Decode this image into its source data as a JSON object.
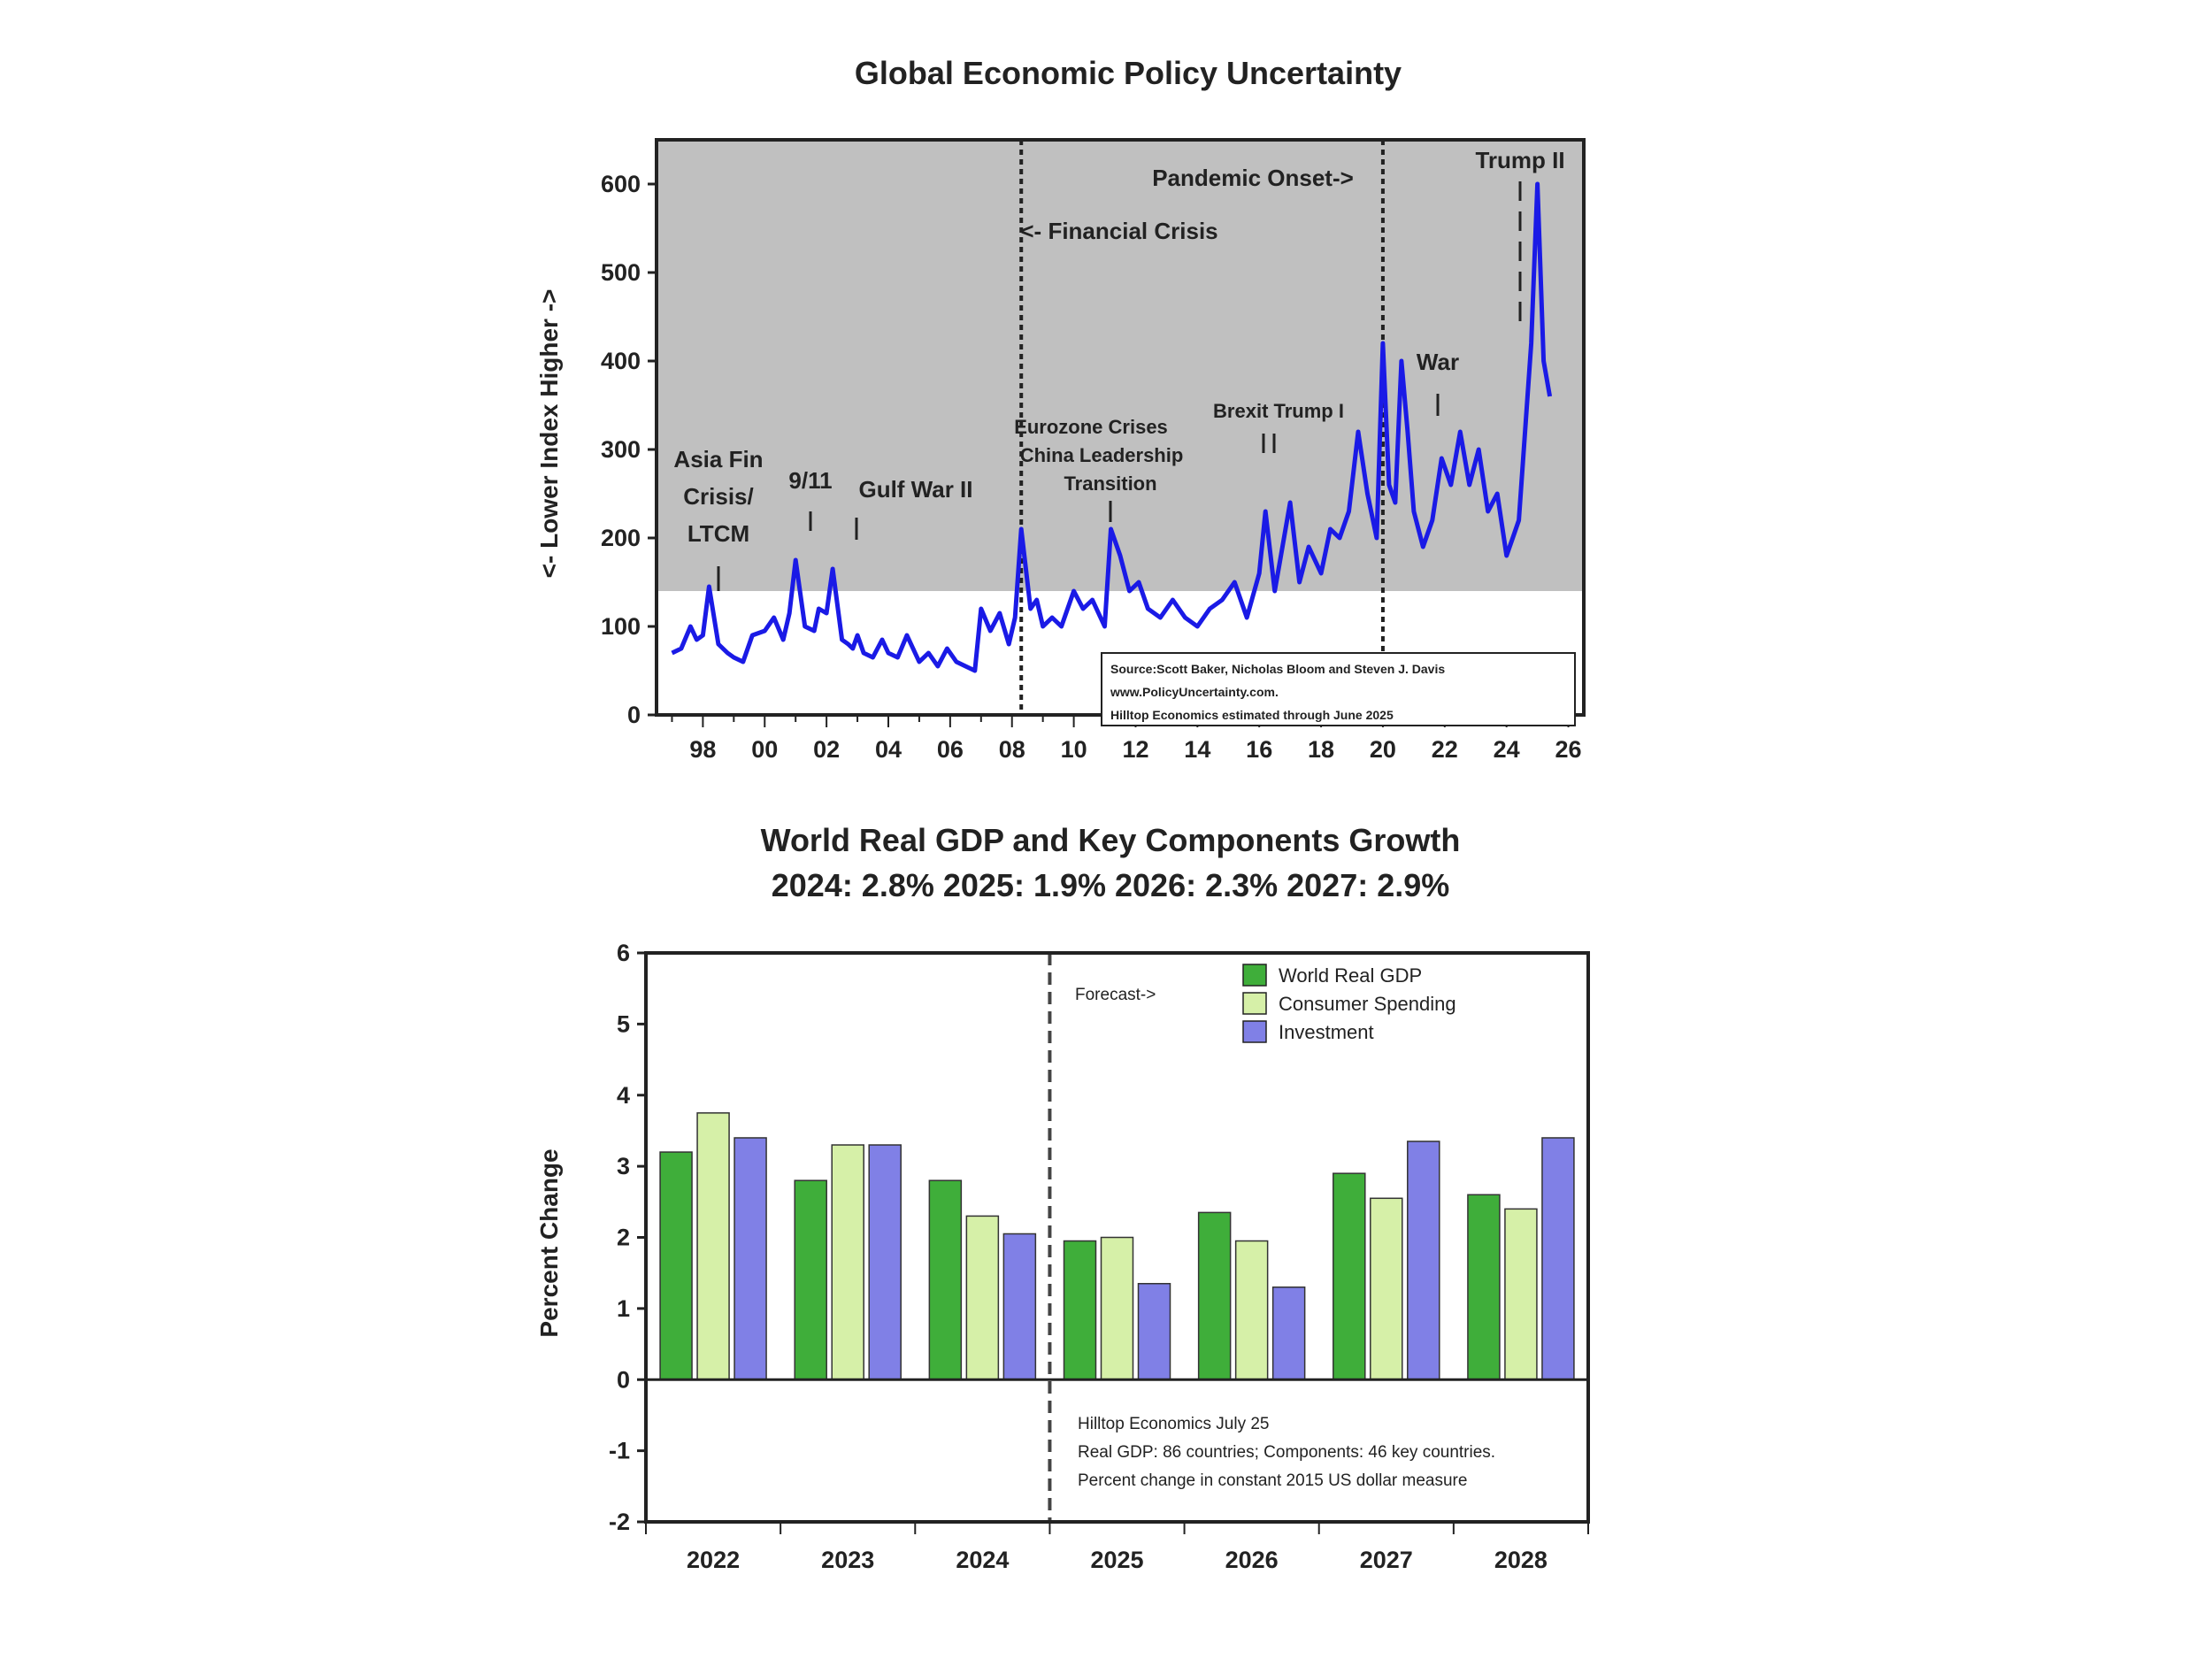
{
  "chart_data": [
    {
      "type": "line",
      "title": "Global Economic Policy Uncertainty",
      "ylabel": "<- Lower  Index  Higher ->",
      "xlabel": "",
      "ylim": [
        0,
        650
      ],
      "yticks": [
        "0",
        "100",
        "200",
        "300",
        "400",
        "500",
        "600"
      ],
      "xticks": [
        "98",
        "00",
        "02",
        "04",
        "06",
        "08",
        "10",
        "12",
        "14",
        "16",
        "18",
        "20",
        "22",
        "24",
        "26"
      ],
      "shading": {
        "label": "",
        "above_value": 140,
        "color": "#c0c0c0"
      },
      "series": [
        {
          "name": "",
          "color": "#1a1ae6",
          "x": [
            1997.0,
            1997.3,
            1997.6,
            1997.8,
            1998.0,
            1998.2,
            1998.5,
            1998.8,
            1999.0,
            1999.3,
            1999.6,
            2000.0,
            2000.3,
            2000.6,
            2000.8,
            2001.0,
            2001.3,
            2001.6,
            2001.75,
            2002.0,
            2002.2,
            2002.5,
            2002.7,
            2002.85,
            2003.0,
            2003.2,
            2003.5,
            2003.8,
            2004.0,
            2004.3,
            2004.6,
            2005.0,
            2005.3,
            2005.6,
            2005.9,
            2006.2,
            2006.5,
            2006.8,
            2007.0,
            2007.3,
            2007.6,
            2007.9,
            2008.1,
            2008.3,
            2008.5,
            2008.6,
            2008.8,
            2009.0,
            2009.3,
            2009.6,
            2010.0,
            2010.3,
            2010.6,
            2011.0,
            2011.2,
            2011.5,
            2011.8,
            2012.1,
            2012.4,
            2012.8,
            2013.2,
            2013.6,
            2014.0,
            2014.4,
            2014.8,
            2015.2,
            2015.6,
            2016.0,
            2016.2,
            2016.5,
            2016.7,
            2017.0,
            2017.3,
            2017.6,
            2018.0,
            2018.3,
            2018.6,
            2018.9,
            2019.2,
            2019.5,
            2019.8,
            2020.0,
            2020.2,
            2020.4,
            2020.6,
            2020.8,
            2021.0,
            2021.3,
            2021.6,
            2021.9,
            2022.2,
            2022.5,
            2022.8,
            2023.1,
            2023.4,
            2023.7,
            2024.0,
            2024.2,
            2024.4,
            2024.6,
            2024.8,
            2025.0,
            2025.2,
            2025.4
          ],
          "y": [
            70,
            75,
            100,
            85,
            90,
            145,
            80,
            70,
            65,
            60,
            90,
            95,
            110,
            85,
            115,
            175,
            100,
            95,
            120,
            115,
            165,
            85,
            80,
            75,
            90,
            70,
            65,
            85,
            70,
            65,
            90,
            60,
            70,
            55,
            75,
            60,
            55,
            50,
            120,
            95,
            115,
            80,
            110,
            210,
            150,
            120,
            130,
            100,
            110,
            100,
            140,
            120,
            130,
            100,
            210,
            180,
            140,
            150,
            120,
            110,
            130,
            110,
            100,
            120,
            130,
            150,
            110,
            160,
            230,
            140,
            180,
            240,
            150,
            190,
            160,
            210,
            200,
            230,
            320,
            250,
            200,
            420,
            260,
            240,
            400,
            320,
            230,
            190,
            220,
            290,
            260,
            320,
            260,
            300,
            230,
            250,
            180,
            200,
            220,
            320,
            420,
            600,
            400,
            360
          ]
        }
      ],
      "vlines": [
        2008.3,
        2020.0
      ],
      "annotations": [
        {
          "text": "Asia Fin",
          "x": 1998.2
        },
        {
          "text": "Crisis/",
          "x": 1998.2
        },
        {
          "text": "LTCM",
          "x": 1998.2
        },
        {
          "text": "9/11",
          "x": 2001.75
        },
        {
          "text": "Gulf War II",
          "x": 2003.0
        },
        {
          "text": "<- Financial Crisis",
          "x": 2008.5
        },
        {
          "text": "Eurozone Crises",
          "x": 2011.0
        },
        {
          "text": "China Leadership",
          "x": 2011.0
        },
        {
          "text": "Transition",
          "x": 2011.0
        },
        {
          "text": "Brexit Trump I",
          "x": 2016.5
        },
        {
          "text": "Pandemic Onset->",
          "x": 2019.5
        },
        {
          "text": "War",
          "x": 2022.0
        },
        {
          "text": "Trump II",
          "x": 2024.6
        }
      ],
      "source_box": [
        "Source:Scott Baker, Nicholas Bloom and Steven J. Davis",
        "www.PolicyUncertainty.com.",
        "Hilltop Economics estimated through June 2025"
      ]
    },
    {
      "type": "bar",
      "title": "World Real GDP and Key Components Growth",
      "subtitle": "2024: 2.8%  2025: 1.9% 2026: 2.3% 2027: 2.9%",
      "xlabel": "",
      "ylabel": "Percent Change",
      "ylim": [
        -2,
        6
      ],
      "yticks": [
        "6",
        "5",
        "4",
        "3",
        "2",
        "1",
        "0",
        "-1",
        "-2"
      ],
      "categories": [
        "2022",
        "2023",
        "2024",
        "2025",
        "2026",
        "2027",
        "2028"
      ],
      "forecast_label": "Forecast->",
      "legend_position": "top-right",
      "series": [
        {
          "name": "World Real GDP",
          "color": "#3fae3a",
          "values": [
            3.2,
            2.8,
            2.8,
            1.95,
            2.35,
            2.9,
            2.6
          ]
        },
        {
          "name": "Consumer Spending",
          "color": "#d6f0a8",
          "values": [
            3.75,
            3.3,
            2.3,
            2.0,
            1.95,
            2.55,
            2.4
          ]
        },
        {
          "name": "Investment",
          "color": "#8080e6",
          "values": [
            3.4,
            3.3,
            2.05,
            1.35,
            1.3,
            3.35,
            3.4
          ]
        }
      ],
      "notes": [
        "Hilltop Economics July 25",
        "Real GDP: 86 countries; Components: 46 key countries.",
        "Percent change in constant 2015 US dollar measure"
      ]
    }
  ]
}
